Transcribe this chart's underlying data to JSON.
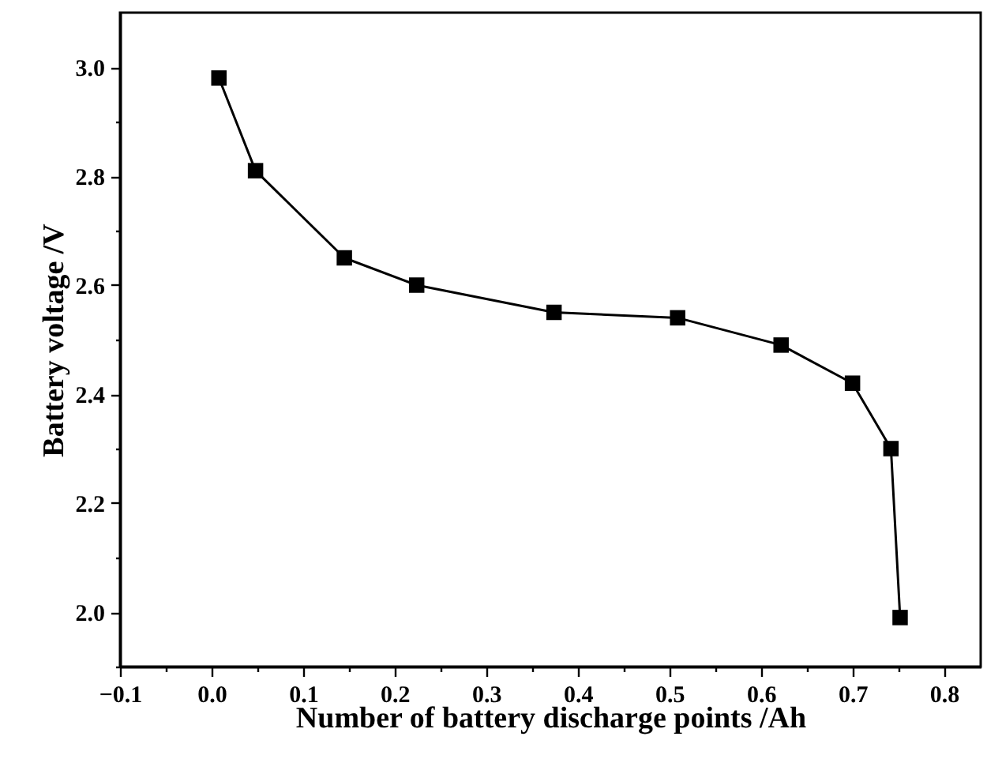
{
  "chart_data": {
    "type": "line",
    "xlabel": "Number of battery discharge points /Ah",
    "ylabel": "Battery voltage /V",
    "x": [
      0.008,
      0.048,
      0.145,
      0.224,
      0.374,
      0.509,
      0.622,
      0.7,
      0.742,
      0.752
    ],
    "series": [
      {
        "color": "#000000",
        "values": [
          2.98,
          2.81,
          2.65,
          2.6,
          2.55,
          2.54,
          2.49,
          2.42,
          2.3,
          1.99
        ]
      }
    ],
    "xlim": [
      -0.1,
      0.84
    ],
    "xticks": [
      -0.1,
      {
        "value": -0.05,
        "label": null
      },
      {
        "value": 0,
        "label": "0.0"
      },
      {
        "value": 0.05,
        "label": null
      },
      0.1,
      {
        "value": 0.15,
        "label": null
      },
      0.2,
      {
        "value": 0.25,
        "label": null
      },
      0.3,
      {
        "value": 0.35,
        "label": null
      },
      0.4,
      {
        "value": 0.45,
        "label": null
      },
      0.5,
      {
        "value": 0.55,
        "label": null
      },
      0.6,
      {
        "value": 0.65,
        "label": null
      },
      0.7,
      {
        "value": 0.75,
        "label": null
      },
      0.8
    ],
    "ylim": [
      1.9,
      3.1
    ],
    "yticks": [
      {
        "value": 1.9,
        "label": null
      },
      {
        "value": 2,
        "label": "2.0"
      },
      {
        "value": 2.1,
        "label": null
      },
      2.2,
      {
        "value": 2.3,
        "label": null
      },
      2.4,
      {
        "value": 2.5,
        "label": null
      },
      2.6,
      {
        "value": 2.7,
        "label": null
      },
      2.8,
      {
        "value": 2.9,
        "label": null
      },
      {
        "value": 3,
        "label": "3.0"
      }
    ],
    "marker": "square",
    "line_style": "solid",
    "grid": false
  }
}
